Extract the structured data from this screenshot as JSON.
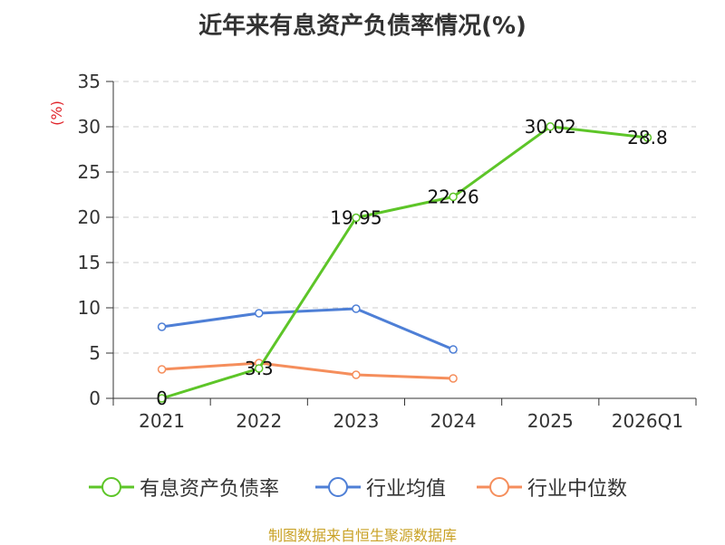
{
  "title": "近年来有息资产负债率情况(%)",
  "source": "制图数据来自恒生聚源数据库",
  "chart_data": {
    "type": "line",
    "title": "近年来有息资产负债率情况(%)",
    "categories": [
      "2021",
      "2022",
      "2023",
      "2024",
      "2025",
      "2026Q1"
    ],
    "ylabel": "(%)",
    "xlabel": "",
    "ylim": [
      0,
      35
    ],
    "yticks": [
      0,
      5,
      10,
      15,
      20,
      25,
      30,
      35
    ],
    "grid": true,
    "legend_position": "bottom",
    "series": [
      {
        "name": "有息资产负债率",
        "color": "#5dc528",
        "values": [
          0,
          3.3,
          19.95,
          22.26,
          30.02,
          28.8
        ],
        "data_labels": [
          "0",
          "3.3",
          "19.95",
          "22.26",
          "30.02",
          "28.8"
        ]
      },
      {
        "name": "行业均值",
        "color": "#4e7fd6",
        "values": [
          7.9,
          9.4,
          9.9,
          5.4,
          null,
          null
        ]
      },
      {
        "name": "行业中位数",
        "color": "#f58e5c",
        "values": [
          3.2,
          3.9,
          2.6,
          2.2,
          null,
          null
        ]
      }
    ]
  }
}
